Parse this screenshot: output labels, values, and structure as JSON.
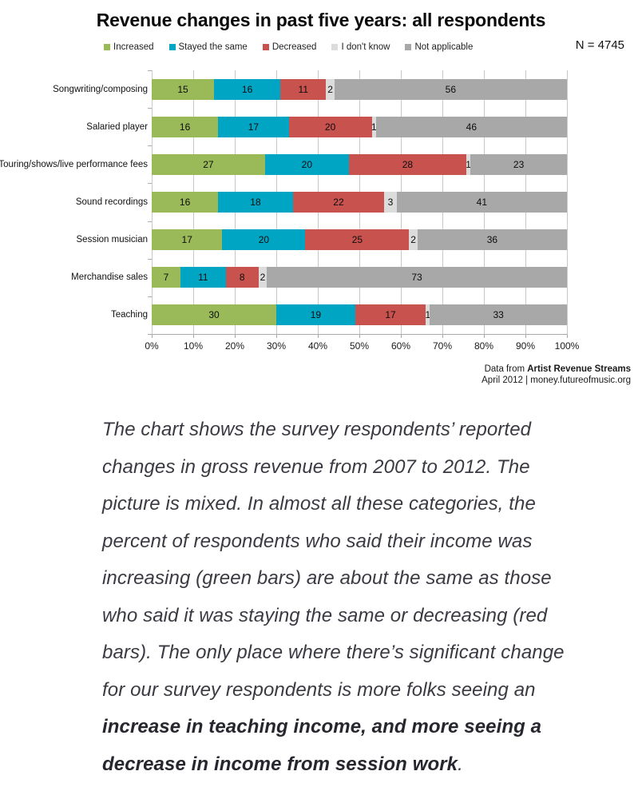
{
  "title": "Revenue changes in past five years: all respondents",
  "n_label": "N = 4745",
  "chart_data": {
    "type": "bar",
    "stacked": true,
    "orientation": "horizontal",
    "title": "Revenue changes in past five years: all respondents",
    "categories": [
      "Songwriting/composing",
      "Salaried player",
      "Touring/shows/live performance fees",
      "Sound recordings",
      "Session musician",
      "Merchandise sales",
      "Teaching"
    ],
    "series": [
      {
        "name": "Increased",
        "color": "#9aba59",
        "values": [
          15,
          16,
          27,
          16,
          17,
          7,
          30
        ]
      },
      {
        "name": "Stayed the same",
        "color": "#00a5c4",
        "values": [
          16,
          17,
          20,
          18,
          20,
          11,
          19
        ]
      },
      {
        "name": "Decreased",
        "color": "#c8524e",
        "values": [
          11,
          20,
          28,
          22,
          25,
          8,
          17
        ]
      },
      {
        "name": "I don't know",
        "color": "#dcdcdc",
        "values": [
          2,
          1,
          1,
          3,
          2,
          2,
          1
        ]
      },
      {
        "name": "Not applicable",
        "color": "#a8a8a8",
        "values": [
          56,
          46,
          23,
          41,
          36,
          73,
          33
        ]
      }
    ],
    "x_ticks": [
      "0%",
      "10%",
      "20%",
      "30%",
      "40%",
      "50%",
      "60%",
      "70%",
      "80%",
      "90%",
      "100%"
    ],
    "xlim": [
      0,
      100
    ],
    "grid": true,
    "legend_position": "top",
    "gridline_color": "#c9c9c9"
  },
  "attribution": {
    "prefix": "Data from ",
    "source": "Artist Revenue Streams",
    "line2": "April 2012 | money.futureofmusic.org"
  },
  "caption": {
    "normal": "The chart shows the survey respondents’ reported changes in gross revenue from 2007 to 2012. The picture is mixed. In almost all these categories, the percent of respondents who said their income was increasing (green bars) are about the same as those who said it was staying the same or decreasing (red bars). The only place where there’s significant change for our survey respondents is more folks seeing an ",
    "bold": "increase in teaching income, and more seeing a decrease in income from session work",
    "end": "."
  }
}
